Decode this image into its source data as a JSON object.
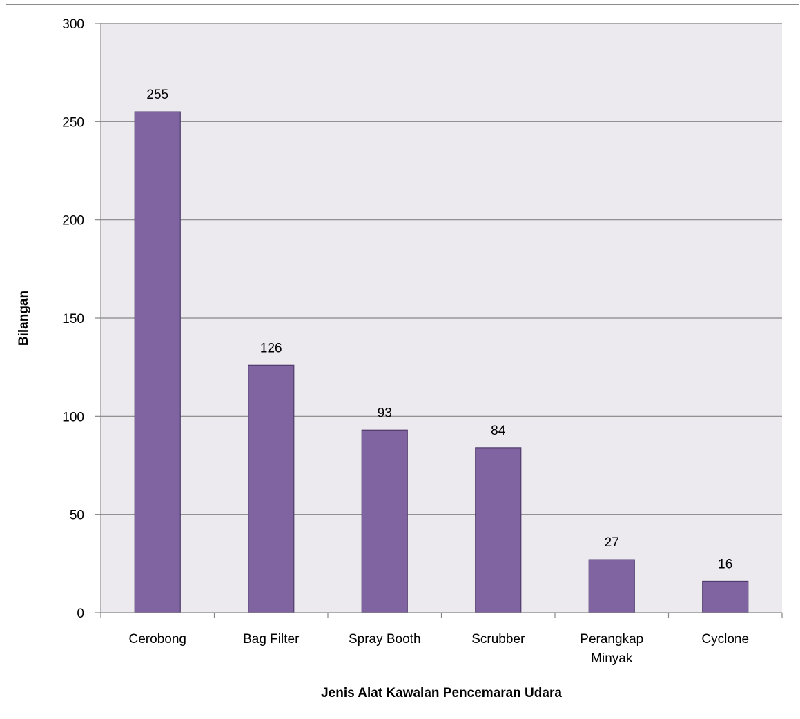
{
  "chart_data": {
    "type": "bar",
    "title": "",
    "xlabel": "Jenis Alat Kawalan Pencemaran Udara",
    "ylabel": "Bilangan",
    "categories": [
      "Cerobong",
      "Bag Filter",
      "Spray Booth",
      "Scrubber",
      "Perangkap Minyak",
      "Cyclone"
    ],
    "category_lines": [
      [
        "Cerobong"
      ],
      [
        "Bag Filter"
      ],
      [
        "Spray Booth"
      ],
      [
        "Scrubber"
      ],
      [
        "Perangkap",
        "Minyak"
      ],
      [
        "Cyclone"
      ]
    ],
    "values": [
      255,
      126,
      93,
      84,
      27,
      16
    ],
    "ylim": [
      0,
      300
    ],
    "yticks": [
      0,
      50,
      100,
      150,
      200,
      250,
      300
    ],
    "grid": true,
    "legend": "none",
    "bar_color": "#8064a2",
    "bar_edge_color": "#4f3b6b",
    "plot_background": "#ece9ef",
    "gridline_color": "#868686"
  }
}
